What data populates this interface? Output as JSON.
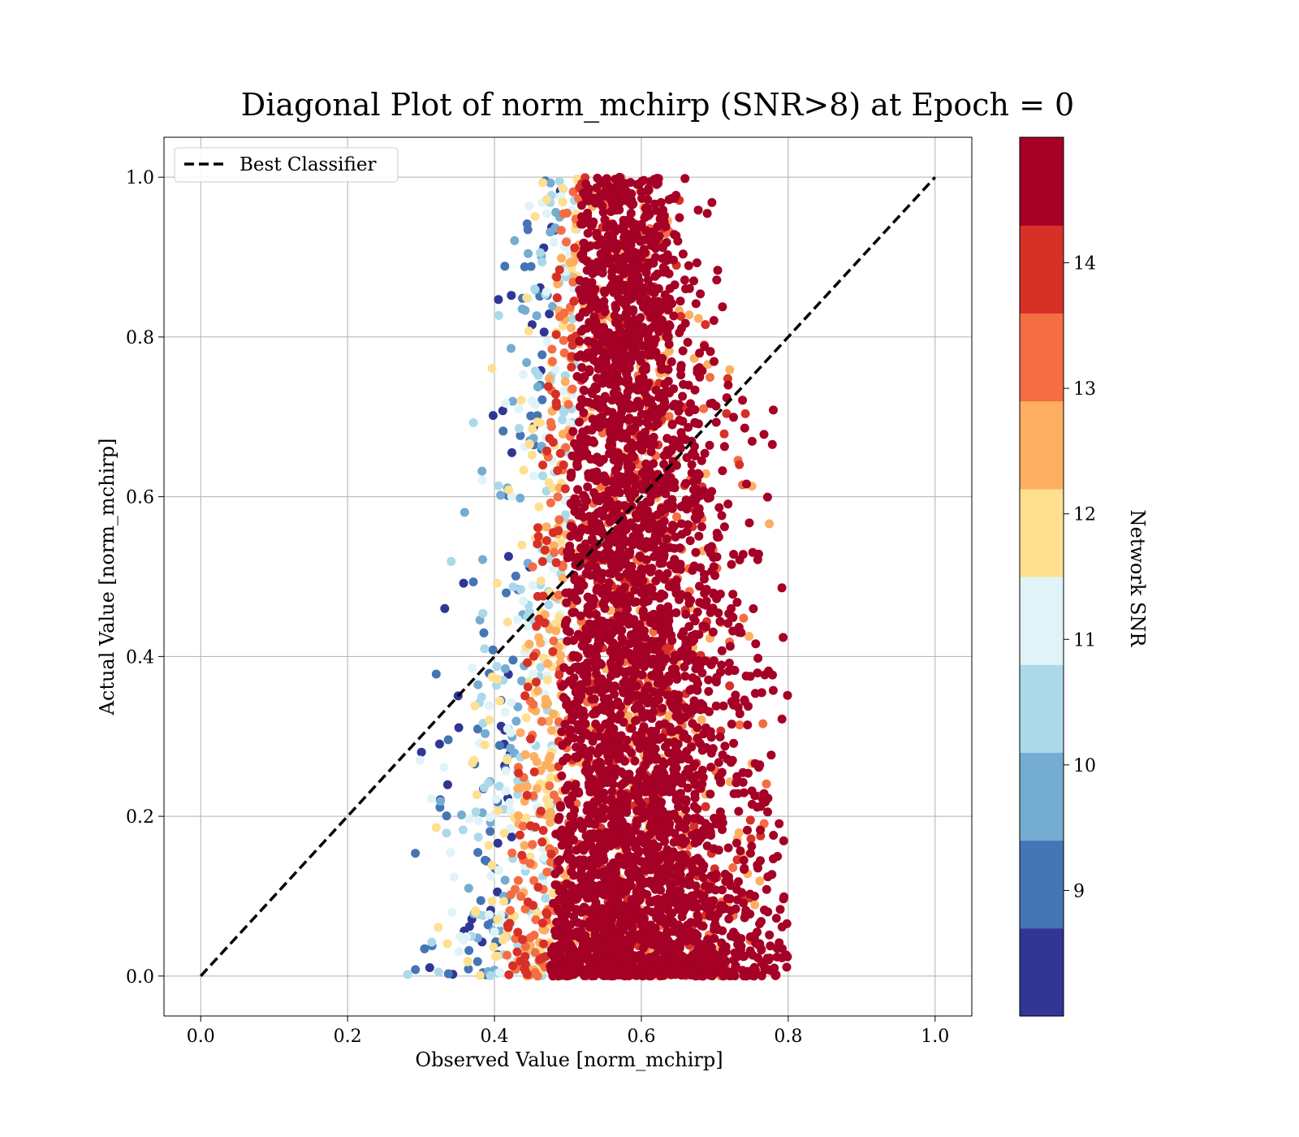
{
  "chart_data": {
    "type": "scatter",
    "title": "Diagonal Plot of norm_mchirp (SNR>8) at Epoch = 0",
    "xlabel": "Observed Value [norm_mchirp]",
    "ylabel": "Actual Value [norm_mchirp]",
    "xlim": [
      -0.05,
      1.05
    ],
    "ylim": [
      -0.05,
      1.05
    ],
    "xticks": [
      "0.0",
      "0.2",
      "0.4",
      "0.6",
      "0.8",
      "1.0"
    ],
    "yticks": [
      "0.0",
      "0.2",
      "0.4",
      "0.6",
      "0.8",
      "1.0"
    ],
    "grid": true,
    "legend": {
      "position": "upper-left",
      "entries": [
        {
          "label": "Best Classifier",
          "style": "dashed",
          "color": "#000000"
        }
      ]
    },
    "series": [
      {
        "name": "Best Classifier",
        "kind": "line",
        "style": "dashed",
        "x": [
          0.0,
          1.0
        ],
        "y": [
          0.0,
          1.0
        ]
      }
    ],
    "scatter": {
      "color_by": "Network SNR",
      "x_range": [
        0.28,
        0.8
      ],
      "y_range": [
        0.0,
        1.0
      ],
      "note_values": "dense cloud centered near x=0.58; high-SNR (dark red) points dominate center, low-SNR (blue) points on the left edge"
    },
    "colorbar": {
      "label": "Network SNR",
      "ticks": [
        "9",
        "10",
        "11",
        "12",
        "13",
        "14"
      ],
      "range": [
        8.0,
        15.0
      ],
      "colors": [
        "#313695",
        "#4575b4",
        "#74add1",
        "#abd9e9",
        "#e0f3f8",
        "#fee090",
        "#fdae61",
        "#f46d43",
        "#d73027",
        "#a50026"
      ],
      "bands": [
        [
          8.0,
          8.7
        ],
        [
          8.7,
          9.4
        ],
        [
          9.4,
          10.1
        ],
        [
          10.1,
          10.8
        ],
        [
          10.8,
          11.5
        ],
        [
          11.5,
          12.2
        ],
        [
          12.2,
          12.9
        ],
        [
          12.9,
          13.6
        ],
        [
          13.6,
          14.3
        ],
        [
          14.3,
          15.0
        ]
      ]
    }
  }
}
